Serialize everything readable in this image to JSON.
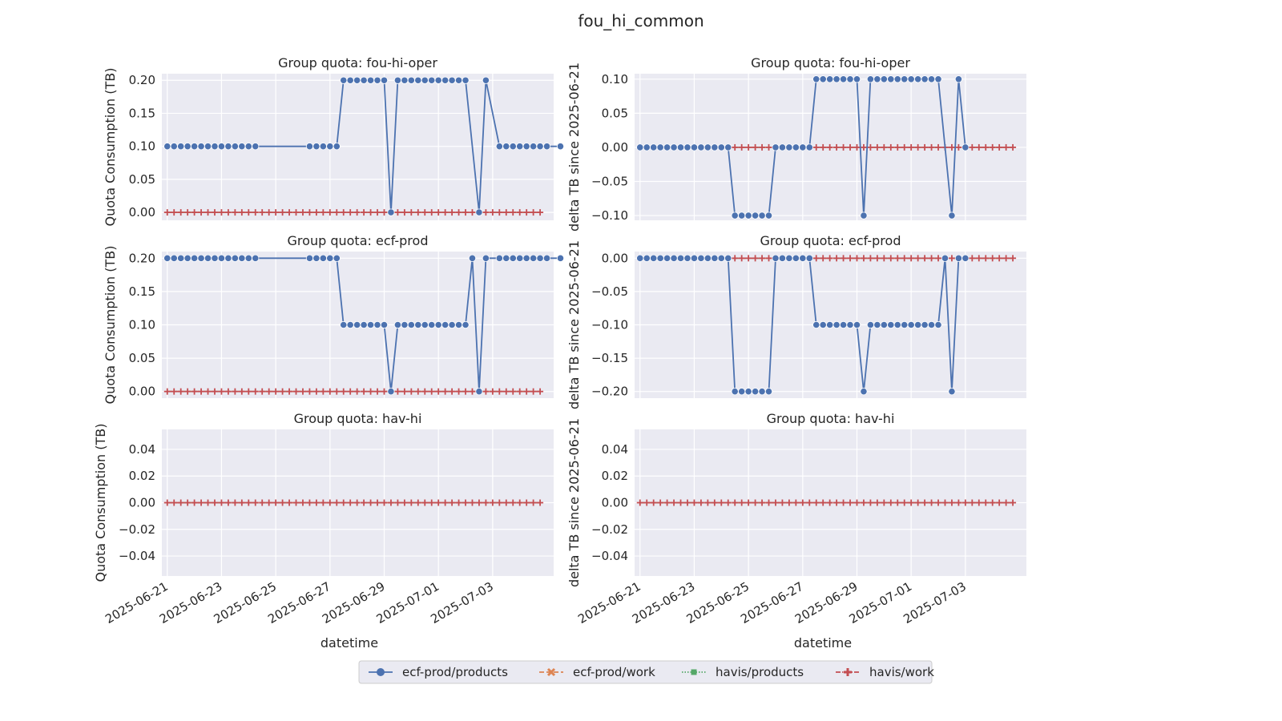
{
  "figure": {
    "suptitle": "fou_hi_common",
    "xlabel": "datetime"
  },
  "colors": {
    "panel_bg": "#eaeaf2",
    "grid": "#ffffff",
    "ecf_prod_products": "#4c72b0",
    "ecf_prod_work": "#dd8452",
    "havis_products": "#55a868",
    "havis_work": "#c44e52"
  },
  "chart_data": [
    {
      "type": "line",
      "title": "Group quota: fou-hi-oper",
      "xlabel": "",
      "ylabel": "Quota Consumption (TB)",
      "ylim": [
        -0.012,
        0.21
      ],
      "yticks": [
        0.0,
        0.05,
        0.1,
        0.15,
        0.2
      ],
      "ytick_labels": [
        "0.00",
        "0.05",
        "0.10",
        "0.15",
        "0.20"
      ],
      "series": [
        {
          "name": "ecf-prod/products",
          "values": [
            0.1,
            0.1,
            0.1,
            0.1,
            0.1,
            0.1,
            0.1,
            0.1,
            0.1,
            0.1,
            0.1,
            0.1,
            0.1,
            0.1,
            null,
            null,
            null,
            null,
            null,
            null,
            null,
            0.1,
            0.1,
            0.1,
            0.1,
            0.1,
            0.2,
            0.2,
            0.2,
            0.2,
            0.2,
            0.2,
            0.2,
            0.0,
            0.2,
            0.2,
            0.2,
            0.2,
            0.2,
            0.2,
            0.2,
            0.2,
            0.2,
            0.2,
            0.2,
            null,
            0.0,
            0.2,
            null,
            0.1,
            0.1,
            0.1,
            0.1,
            0.1,
            0.1,
            0.1,
            0.1,
            null,
            0.1
          ]
        },
        {
          "name": "ecf-prod/work",
          "values": "zeros"
        },
        {
          "name": "havis/products",
          "values": "zeros"
        },
        {
          "name": "havis/work",
          "values": "zeros"
        }
      ]
    },
    {
      "type": "line",
      "title": "Group quota: fou-hi-oper",
      "xlabel": "",
      "ylabel": "delta TB since 2025-06-21",
      "ylim": [
        -0.107,
        0.108
      ],
      "yticks": [
        -0.1,
        -0.05,
        0.0,
        0.05,
        0.1
      ],
      "ytick_labels": [
        "−0.10",
        "−0.05",
        "0.00",
        "0.05",
        "0.10"
      ],
      "series": [
        {
          "name": "ecf-prod/products",
          "values": [
            0.0,
            0.0,
            0.0,
            0.0,
            0.0,
            0.0,
            0.0,
            0.0,
            0.0,
            0.0,
            0.0,
            0.0,
            0.0,
            0.0,
            -0.1,
            -0.1,
            -0.1,
            -0.1,
            -0.1,
            -0.1,
            0.0,
            0.0,
            0.0,
            0.0,
            0.0,
            0.0,
            0.1,
            0.1,
            0.1,
            0.1,
            0.1,
            0.1,
            0.1,
            -0.1,
            0.1,
            0.1,
            0.1,
            0.1,
            0.1,
            0.1,
            0.1,
            0.1,
            0.1,
            0.1,
            0.1,
            null,
            -0.1,
            0.1,
            0.0,
            null,
            null,
            null,
            null,
            null,
            null,
            null,
            null,
            null,
            null
          ]
        },
        {
          "name": "ecf-prod/work",
          "values": "zeros"
        },
        {
          "name": "havis/products",
          "values": "zeros"
        },
        {
          "name": "havis/work",
          "values": "zeros"
        }
      ]
    },
    {
      "type": "line",
      "title": "Group quota: ecf-prod",
      "xlabel": "",
      "ylabel": "Quota Consumption (TB)",
      "ylim": [
        -0.01,
        0.21
      ],
      "yticks": [
        0.0,
        0.05,
        0.1,
        0.15,
        0.2
      ],
      "ytick_labels": [
        "0.00",
        "0.05",
        "0.10",
        "0.15",
        "0.20"
      ],
      "series": [
        {
          "name": "ecf-prod/products",
          "values": [
            0.2,
            0.2,
            0.2,
            0.2,
            0.2,
            0.2,
            0.2,
            0.2,
            0.2,
            0.2,
            0.2,
            0.2,
            0.2,
            0.2,
            null,
            null,
            null,
            null,
            null,
            null,
            null,
            0.2,
            0.2,
            0.2,
            0.2,
            0.2,
            0.1,
            0.1,
            0.1,
            0.1,
            0.1,
            0.1,
            0.1,
            0.0,
            0.1,
            0.1,
            0.1,
            0.1,
            0.1,
            0.1,
            0.1,
            0.1,
            0.1,
            0.1,
            0.1,
            0.2,
            0.0,
            0.2,
            null,
            0.2,
            0.2,
            0.2,
            0.2,
            0.2,
            0.2,
            0.2,
            0.2,
            null,
            0.2
          ]
        },
        {
          "name": "ecf-prod/work",
          "values": "zeros"
        },
        {
          "name": "havis/products",
          "values": "zeros"
        },
        {
          "name": "havis/work",
          "values": "zeros"
        }
      ]
    },
    {
      "type": "line",
      "title": "Group quota: ecf-prod",
      "xlabel": "",
      "ylabel": "delta TB since 2025-06-21",
      "ylim": [
        -0.21,
        0.01
      ],
      "yticks": [
        -0.2,
        -0.15,
        -0.1,
        -0.05,
        0.0
      ],
      "ytick_labels": [
        "−0.20",
        "−0.15",
        "−0.10",
        "−0.05",
        "0.00"
      ],
      "series": [
        {
          "name": "ecf-prod/products",
          "values": [
            0.0,
            0.0,
            0.0,
            0.0,
            0.0,
            0.0,
            0.0,
            0.0,
            0.0,
            0.0,
            0.0,
            0.0,
            0.0,
            0.0,
            -0.2,
            -0.2,
            -0.2,
            -0.2,
            -0.2,
            -0.2,
            0.0,
            0.0,
            0.0,
            0.0,
            0.0,
            0.0,
            -0.1,
            -0.1,
            -0.1,
            -0.1,
            -0.1,
            -0.1,
            -0.1,
            -0.2,
            -0.1,
            -0.1,
            -0.1,
            -0.1,
            -0.1,
            -0.1,
            -0.1,
            -0.1,
            -0.1,
            -0.1,
            -0.1,
            0.0,
            -0.2,
            0.0,
            0.0,
            null,
            null,
            null,
            null,
            null,
            null,
            null,
            null,
            null,
            null
          ]
        },
        {
          "name": "ecf-prod/work",
          "values": "zeros"
        },
        {
          "name": "havis/products",
          "values": "zeros"
        },
        {
          "name": "havis/work",
          "values": "zeros"
        }
      ]
    },
    {
      "type": "line",
      "title": "Group quota: hav-hi",
      "xlabel": "datetime",
      "ylabel": "Quota Consumption (TB)",
      "ylim": [
        -0.055,
        0.055
      ],
      "yticks": [
        -0.04,
        -0.02,
        0.0,
        0.02,
        0.04
      ],
      "ytick_labels": [
        "−0.04",
        "−0.02",
        "0.00",
        "0.02",
        "0.04"
      ],
      "series": [
        {
          "name": "ecf-prod/products",
          "values": []
        },
        {
          "name": "ecf-prod/work",
          "values": "zeros"
        },
        {
          "name": "havis/products",
          "values": "zeros"
        },
        {
          "name": "havis/work",
          "values": "zeros"
        }
      ]
    },
    {
      "type": "line",
      "title": "Group quota: hav-hi",
      "xlabel": "datetime",
      "ylabel": "delta TB since 2025-06-21",
      "ylim": [
        -0.055,
        0.055
      ],
      "yticks": [
        -0.04,
        -0.02,
        0.0,
        0.02,
        0.04
      ],
      "ytick_labels": [
        "−0.04",
        "−0.02",
        "0.00",
        "0.02",
        "0.04"
      ],
      "series": [
        {
          "name": "ecf-prod/products",
          "values": []
        },
        {
          "name": "ecf-prod/work",
          "values": "zeros"
        },
        {
          "name": "havis/products",
          "values": "zeros"
        },
        {
          "name": "havis/work",
          "values": "zeros"
        }
      ]
    }
  ],
  "x_axis": {
    "type": "date",
    "start": "2025-06-21",
    "end": "2025-07-04T18:00",
    "sample_step_hours": 6,
    "ticks": [
      "2025-06-21",
      "2025-06-23",
      "2025-06-25",
      "2025-06-27",
      "2025-06-29",
      "2025-07-01",
      "2025-07-03"
    ]
  },
  "legend": {
    "placement": "bottom-center",
    "entries": [
      {
        "label": "ecf-prod/products",
        "marker": "circle",
        "dash": "solid"
      },
      {
        "label": "ecf-prod/work",
        "marker": "x",
        "dash": "dashed"
      },
      {
        "label": "havis/products",
        "marker": "square",
        "dash": "dotted"
      },
      {
        "label": "havis/work",
        "marker": "plus",
        "dash": "dashdot"
      }
    ]
  }
}
